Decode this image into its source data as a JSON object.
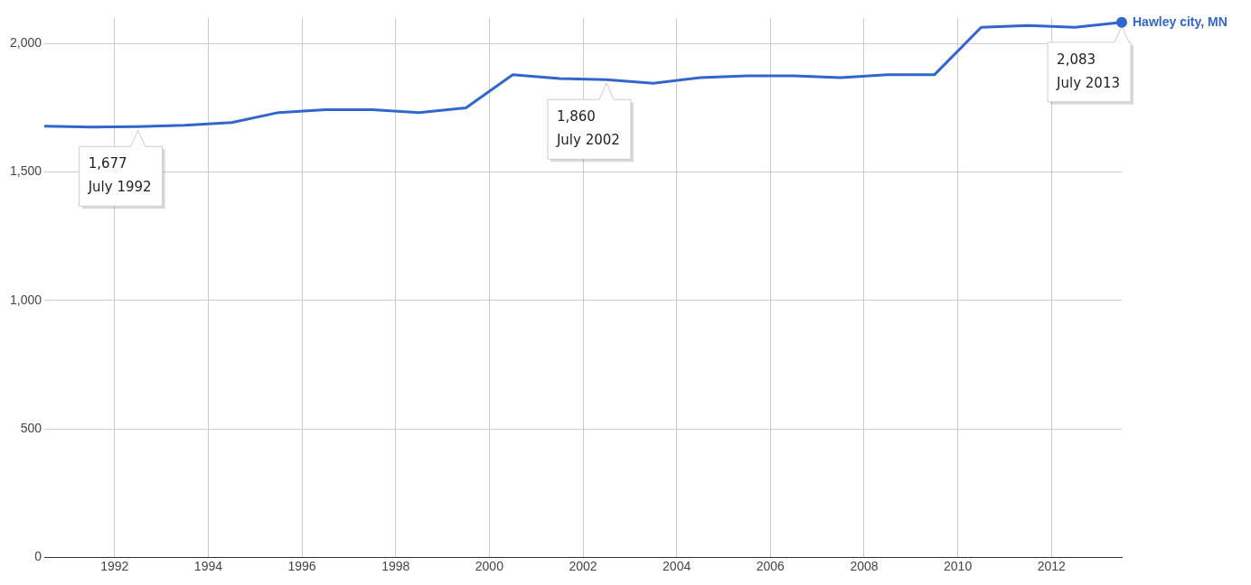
{
  "chart_data": {
    "type": "line",
    "x": [
      "1990-07",
      "1991-07",
      "1992-07",
      "1993-07",
      "1994-07",
      "1995-07",
      "1996-07",
      "1997-07",
      "1998-07",
      "1999-07",
      "2000-07",
      "2001-07",
      "2002-07",
      "2003-07",
      "2004-07",
      "2005-07",
      "2006-07",
      "2007-07",
      "2008-07",
      "2009-07",
      "2010-07",
      "2011-07",
      "2012-07",
      "2013-07"
    ],
    "series": [
      {
        "name": "Hawley city, MN",
        "color": "#3366cc",
        "values": [
          1679,
          1675,
          1677,
          1682,
          1693,
          1732,
          1743,
          1743,
          1732,
          1750,
          1879,
          1864,
          1860,
          1846,
          1868,
          1875,
          1875,
          1868,
          1879,
          1879,
          2064,
          2071,
          2064,
          2083
        ]
      }
    ],
    "xlim": [
      "1990-07",
      "2013-07"
    ],
    "xticks": [
      {
        "value": "1992",
        "label": "1992"
      },
      {
        "value": "1994",
        "label": "1994"
      },
      {
        "value": "1996",
        "label": "1996"
      },
      {
        "value": "1998",
        "label": "1998"
      },
      {
        "value": "2000",
        "label": "2000"
      },
      {
        "value": "2002",
        "label": "2002"
      },
      {
        "value": "2004",
        "label": "2004"
      },
      {
        "value": "2006",
        "label": "2006"
      },
      {
        "value": "2008",
        "label": "2008"
      },
      {
        "value": "2010",
        "label": "2010"
      },
      {
        "value": "2012",
        "label": "2012"
      }
    ],
    "ylim": [
      0,
      2100
    ],
    "yticks": [
      0,
      {
        "value": 500,
        "label": "500"
      },
      {
        "value": 1000,
        "label": "1,000"
      },
      {
        "value": 1500,
        "label": "1,500"
      },
      {
        "value": 2000,
        "label": "2,000"
      }
    ],
    "annotations": [
      {
        "text": "1,677\nJuly 1992",
        "x": "1992-07",
        "y": 1677
      },
      {
        "text": "1,860\nJuly 2002",
        "x": "2002-07",
        "y": 1860
      },
      {
        "text": "2,083\nJuly 2013",
        "x": "2013-07",
        "y": 2083
      }
    ],
    "grid": true,
    "legend": "top right"
  }
}
